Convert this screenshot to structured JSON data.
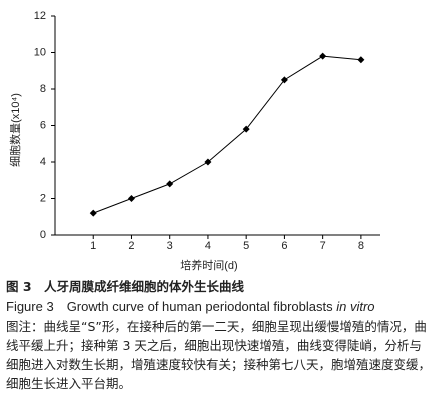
{
  "chart_data": {
    "type": "line",
    "x": [
      1,
      2,
      3,
      4,
      5,
      6,
      7,
      8
    ],
    "series": [
      {
        "color": "#000000",
        "values": [
          1.2,
          2.0,
          2.8,
          4.0,
          5.8,
          8.5,
          9.8,
          9.6
        ]
      }
    ],
    "xlim": [
      0,
      8.5
    ],
    "xticks": [
      1,
      2,
      3,
      4,
      5,
      6,
      7,
      8
    ],
    "ylim": [
      0,
      12
    ],
    "yticks": [
      0,
      2,
      4,
      6,
      8,
      10,
      12
    ],
    "grid": false,
    "x_label": "培养时间(d)",
    "y_label": "细胞数量(x10⁴)"
  },
  "caption": {
    "cn": "图 3　人牙周膜成纤维细胞的体外生长曲线",
    "en_main": "Figure 3　Growth curve of human periodontal fibroblasts ",
    "en_italic": "in vitro",
    "note": "图注：曲线呈“S”形，在接种后的第一二天，细胞呈现出缓慢增殖的情况，曲线平缓上升；接种第 3 天之后，细胞出现快速增殖，曲线变得陡峭，分析与细胞进入对数生长期，增殖速度较快有关；接种第七八天，胞增殖速度变缓，细胞生长进入平台期。"
  }
}
